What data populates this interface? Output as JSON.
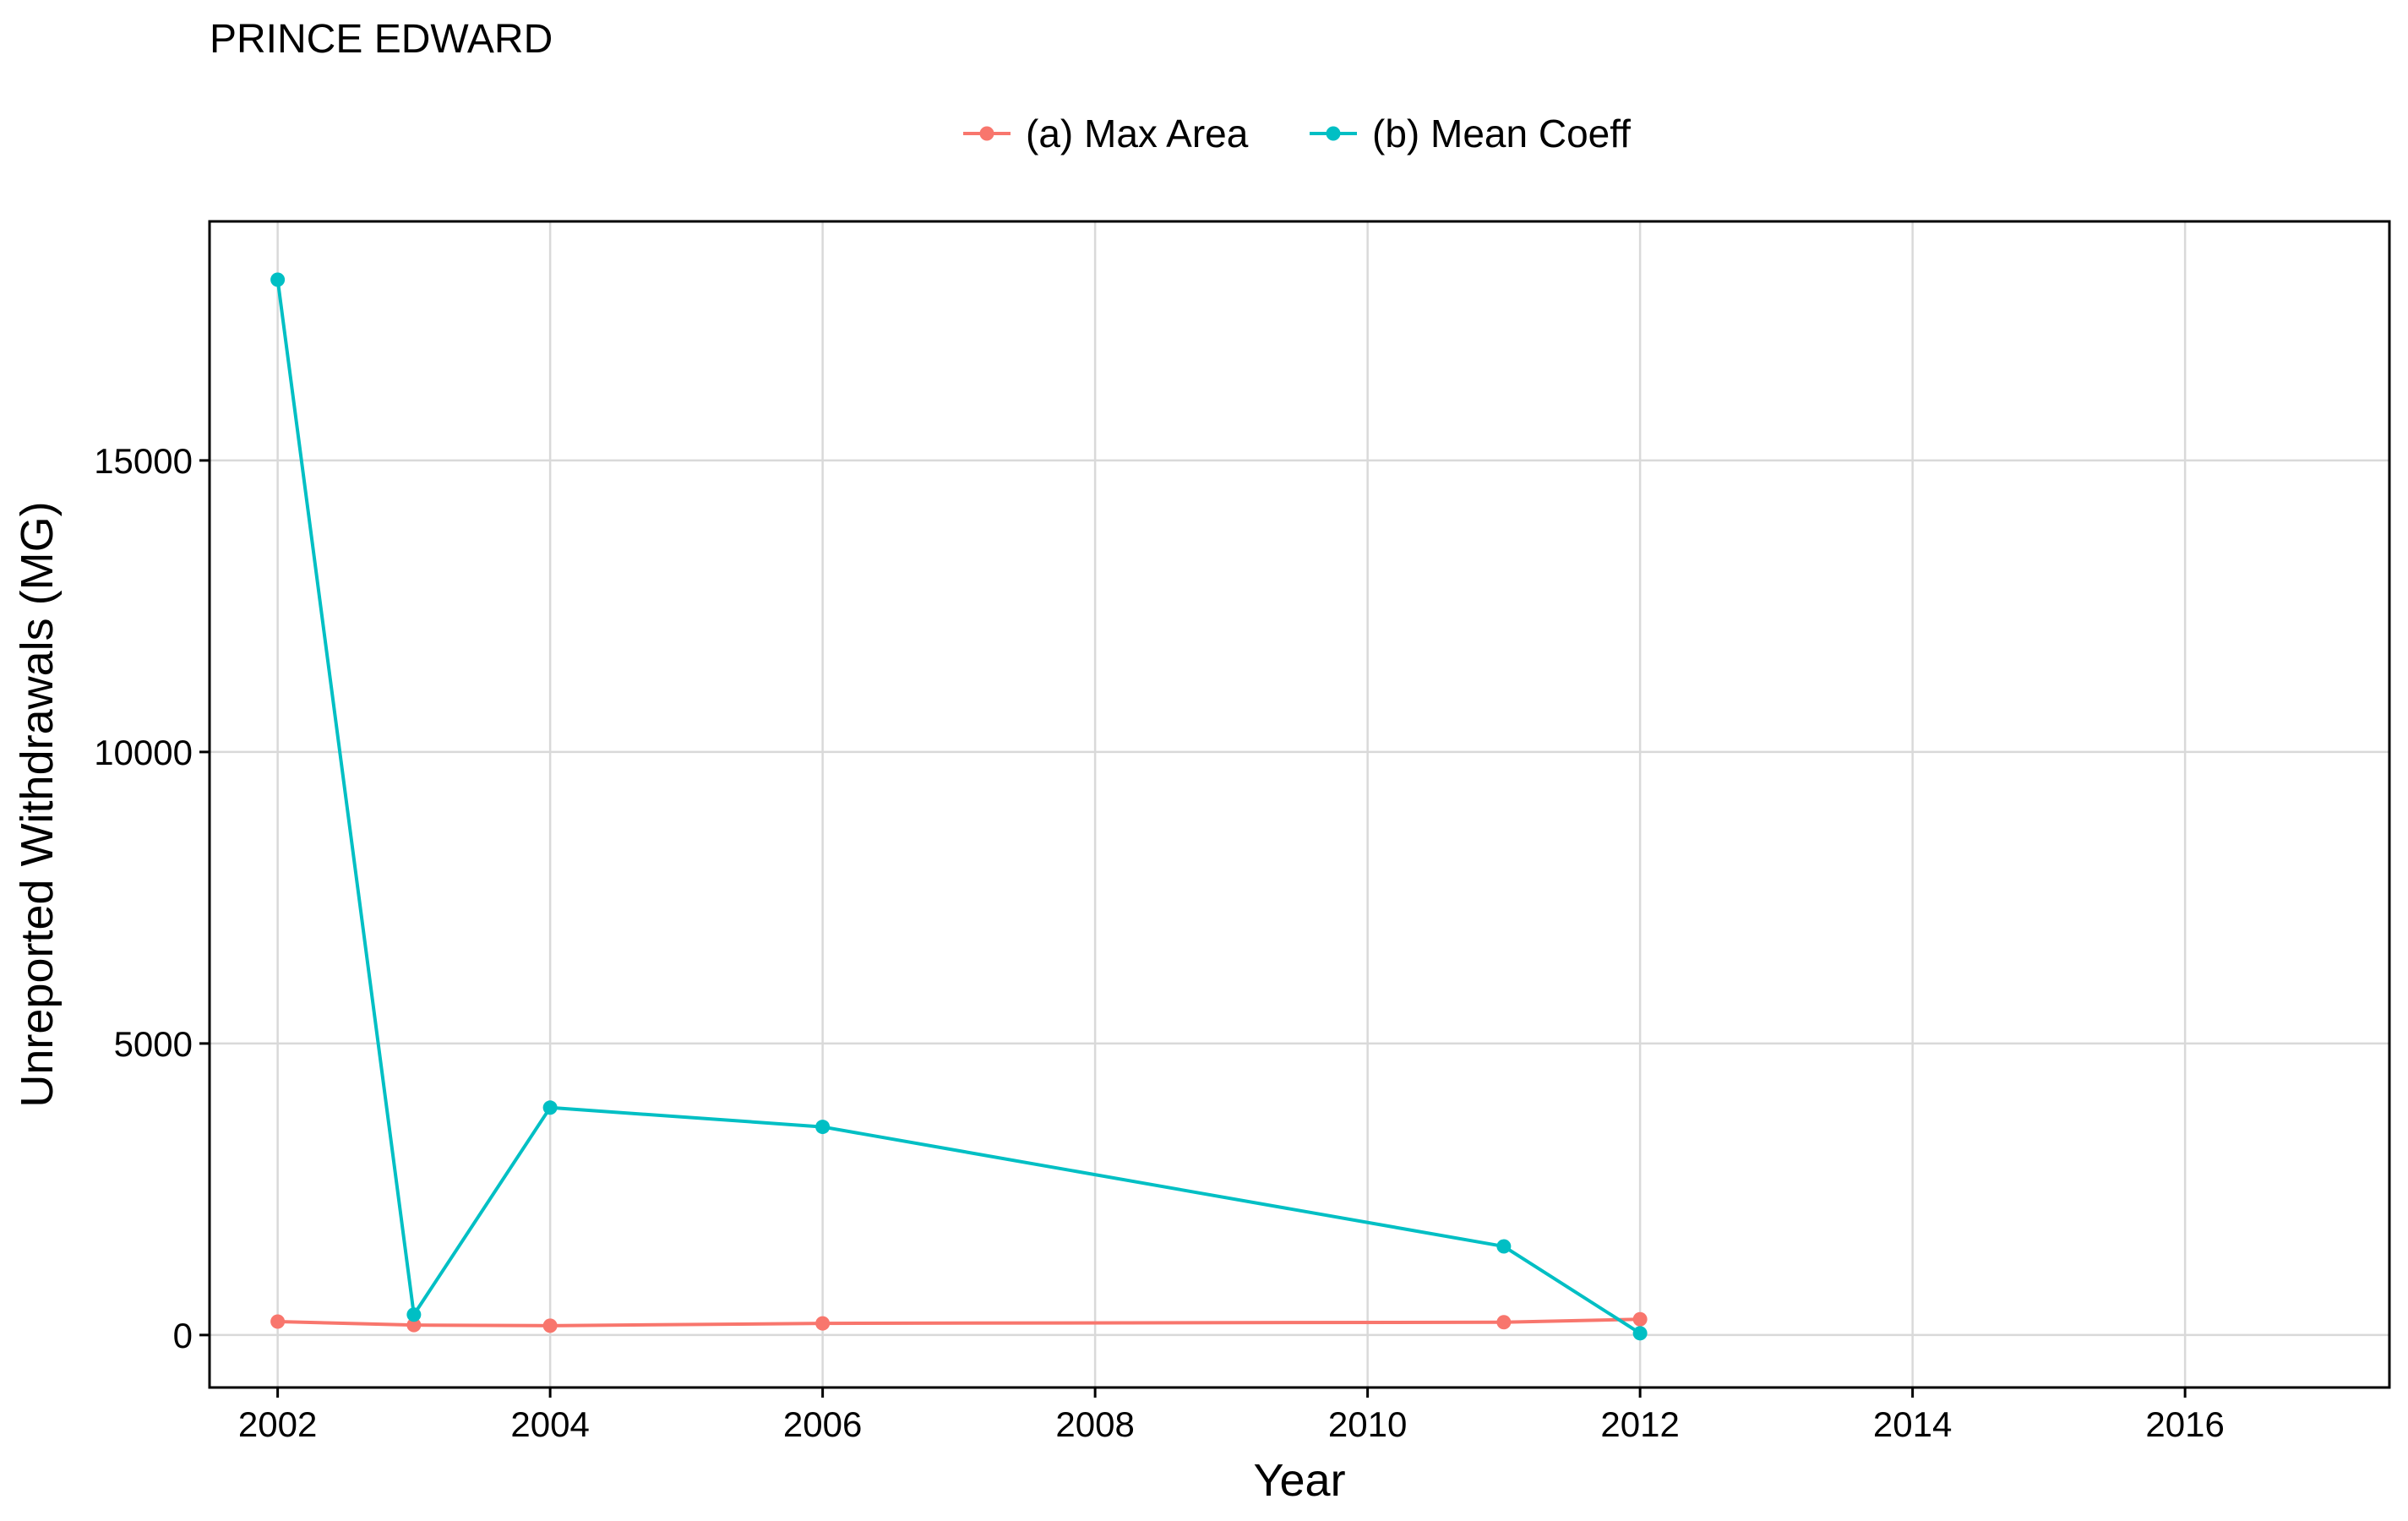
{
  "chart_data": {
    "type": "line",
    "title": "PRINCE EDWARD",
    "xlabel": "Year",
    "ylabel": "Unreported Withdrawals (MG)",
    "xlim": [
      2001.5,
      2017.5
    ],
    "ylim": [
      -900,
      19100
    ],
    "x_ticks": [
      2002,
      2004,
      2006,
      2008,
      2010,
      2012,
      2014,
      2016
    ],
    "y_ticks": [
      0,
      5000,
      10000,
      15000
    ],
    "grid": true,
    "legend_position": "top",
    "series": [
      {
        "name": "(a) Max Area",
        "color": "#F8766D",
        "x": [
          2002,
          2003,
          2004,
          2006,
          2011,
          2012
        ],
        "y": [
          230,
          170,
          160,
          200,
          220,
          270
        ]
      },
      {
        "name": "(b) Mean Coeff",
        "color": "#00BFC4",
        "x": [
          2002,
          2003,
          2004,
          2006,
          2011,
          2012
        ],
        "y": [
          18100,
          350,
          3900,
          3570,
          1520,
          30
        ]
      }
    ]
  }
}
